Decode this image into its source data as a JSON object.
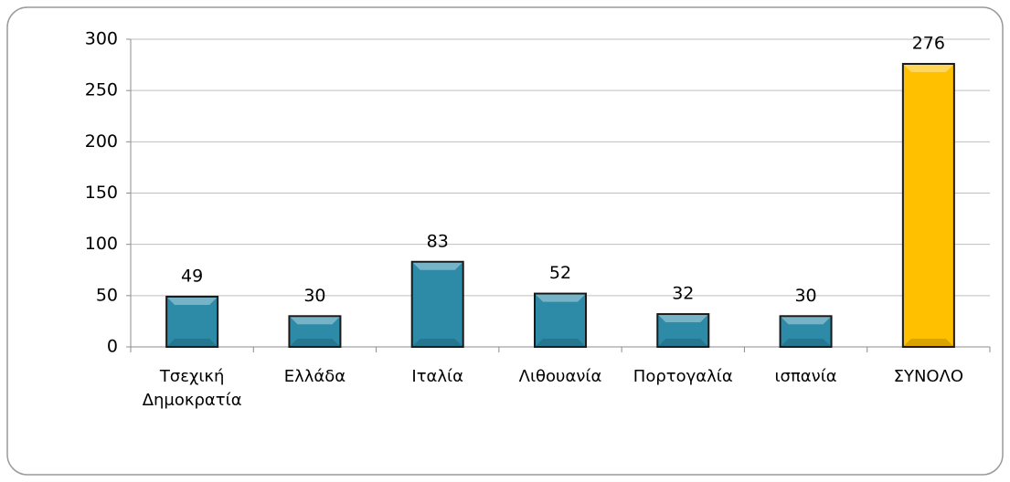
{
  "chart_data": {
    "type": "bar",
    "categories": [
      "Τσεχική Δημοκρατία",
      "Ελλάδα",
      "Ιταλία",
      "Λιθουανία",
      "Πορτογαλία",
      "ισπανία",
      "ΣΥΝΟΛΟ"
    ],
    "values": [
      49,
      30,
      83,
      52,
      32,
      30,
      276
    ],
    "colors": [
      "#2e8ba8",
      "#2e8ba8",
      "#2e8ba8",
      "#2e8ba8",
      "#2e8ba8",
      "#2e8ba8",
      "#ffc000"
    ],
    "ylim": [
      0,
      300
    ],
    "yticks": [
      0,
      50,
      100,
      150,
      200,
      250,
      300
    ],
    "grid": true
  }
}
